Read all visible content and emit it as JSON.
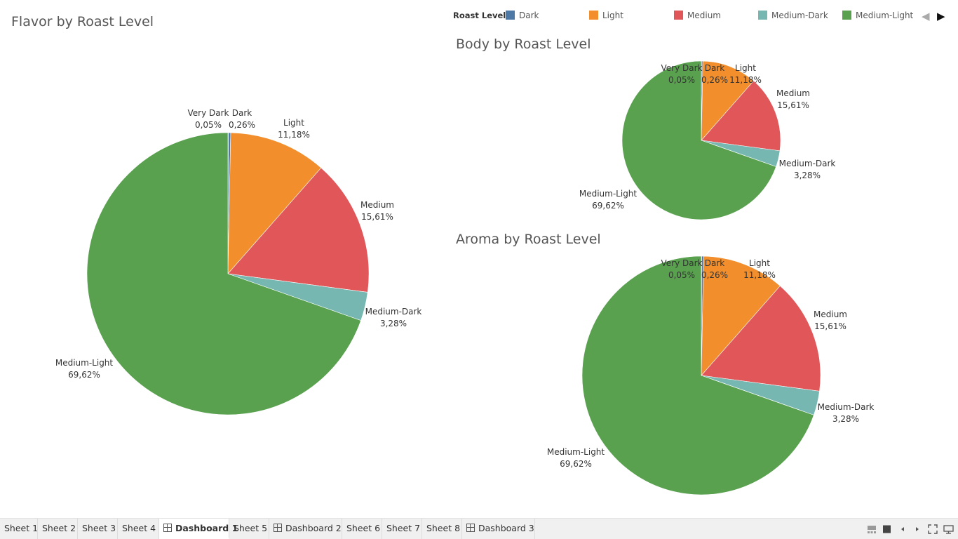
{
  "legend": {
    "title": "Roast Level",
    "items": [
      {
        "label": "Dark",
        "color": "#4e79a7"
      },
      {
        "label": "Light",
        "color": "#f28e2b"
      },
      {
        "label": "Medium",
        "color": "#e15759"
      },
      {
        "label": "Medium-Dark",
        "color": "#76b7b2"
      },
      {
        "label": "Medium-Light",
        "color": "#59a14f"
      }
    ],
    "prev_icon": "triangle-left-icon",
    "next_icon": "triangle-right-icon"
  },
  "chart_data": [
    {
      "type": "pie",
      "title": "Flavor by Roast Level",
      "slices": [
        {
          "label": "Very Dark",
          "value": 0.05,
          "display": "0,05%",
          "color": "#4e79a7"
        },
        {
          "label": "Dark",
          "value": 0.26,
          "display": "0,26%",
          "color": "#4e79a7"
        },
        {
          "label": "Light",
          "value": 11.18,
          "display": "11,18%",
          "color": "#f28e2b"
        },
        {
          "label": "Medium",
          "value": 15.61,
          "display": "15,61%",
          "color": "#e15759"
        },
        {
          "label": "Medium-Dark",
          "value": 3.28,
          "display": "3,28%",
          "color": "#76b7b2"
        },
        {
          "label": "Medium-Light",
          "value": 69.62,
          "display": "69,62%",
          "color": "#59a14f"
        }
      ]
    },
    {
      "type": "pie",
      "title": "Body by Roast Level",
      "slices": [
        {
          "label": "Very Dark",
          "value": 0.05,
          "display": "0,05%",
          "color": "#4e79a7"
        },
        {
          "label": "Dark",
          "value": 0.26,
          "display": "0,26%",
          "color": "#4e79a7"
        },
        {
          "label": "Light",
          "value": 11.18,
          "display": "11,18%",
          "color": "#f28e2b"
        },
        {
          "label": "Medium",
          "value": 15.61,
          "display": "15,61%",
          "color": "#e15759"
        },
        {
          "label": "Medium-Dark",
          "value": 3.28,
          "display": "3,28%",
          "color": "#76b7b2"
        },
        {
          "label": "Medium-Light",
          "value": 69.62,
          "display": "69,62%",
          "color": "#59a14f"
        }
      ]
    },
    {
      "type": "pie",
      "title": "Aroma by Roast Level",
      "slices": [
        {
          "label": "Very Dark",
          "value": 0.05,
          "display": "0,05%",
          "color": "#4e79a7"
        },
        {
          "label": "Dark",
          "value": 0.26,
          "display": "0,26%",
          "color": "#4e79a7"
        },
        {
          "label": "Light",
          "value": 11.18,
          "display": "11,18%",
          "color": "#f28e2b"
        },
        {
          "label": "Medium",
          "value": 15.61,
          "display": "15,61%",
          "color": "#e15759"
        },
        {
          "label": "Medium-Dark",
          "value": 3.28,
          "display": "3,28%",
          "color": "#76b7b2"
        },
        {
          "label": "Medium-Light",
          "value": 69.62,
          "display": "69,62%",
          "color": "#59a14f"
        }
      ]
    }
  ],
  "tabs": [
    {
      "label": "Sheet 1",
      "dashboard": false,
      "active": false
    },
    {
      "label": "Sheet 2",
      "dashboard": false,
      "active": false
    },
    {
      "label": "Sheet 3",
      "dashboard": false,
      "active": false
    },
    {
      "label": "Sheet 4",
      "dashboard": false,
      "active": false
    },
    {
      "label": "Dashboard 1",
      "dashboard": true,
      "active": true
    },
    {
      "label": "Sheet 5",
      "dashboard": false,
      "active": false
    },
    {
      "label": "Dashboard 2",
      "dashboard": true,
      "active": false
    },
    {
      "label": "Sheet 6",
      "dashboard": false,
      "active": false
    },
    {
      "label": "Sheet 7",
      "dashboard": false,
      "active": false
    },
    {
      "label": "Sheet 8",
      "dashboard": false,
      "active": false
    },
    {
      "label": "Dashboard 3",
      "dashboard": true,
      "active": false
    }
  ],
  "controls": {
    "icons": [
      "filmstrip-view-icon",
      "tabs-view-icon",
      "scroll-left-icon",
      "scroll-right-icon",
      "fullscreen-icon",
      "presentation-mode-icon"
    ]
  }
}
